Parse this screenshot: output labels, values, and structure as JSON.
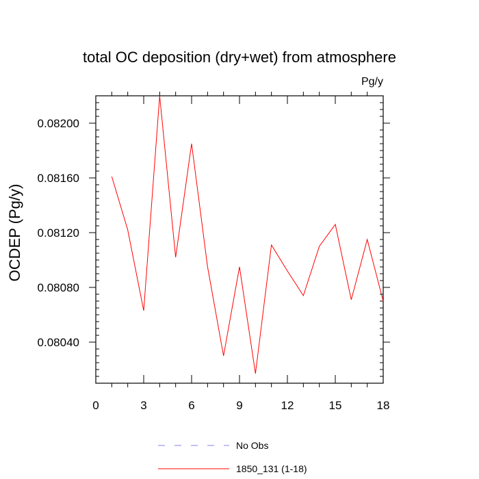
{
  "chart_data": {
    "type": "line",
    "title": "total OC deposition (dry+wet) from atmosphere",
    "units_label": "Pg/y",
    "ylabel": "OCDEP  (Pg/y)",
    "xlabel": "",
    "xlim": [
      0,
      18
    ],
    "ylim": [
      0.0801,
      0.0822
    ],
    "x_ticks": [
      0,
      3,
      6,
      9,
      12,
      15,
      18
    ],
    "x_tick_labels": [
      "0",
      "3",
      "6",
      "9",
      "12",
      "15",
      "18"
    ],
    "y_ticks": [
      0.0804,
      0.0808,
      0.0812,
      0.0816,
      0.082
    ],
    "y_tick_labels": [
      "0.08040",
      "0.08080",
      "0.08120",
      "0.08160",
      "0.08200"
    ],
    "grid": false,
    "legend_position": "bottom-center",
    "series": [
      {
        "name": "1850_131 (1-18)",
        "color": "#ff0000",
        "dash": "solid",
        "x": [
          1,
          2,
          3,
          4,
          5,
          6,
          7,
          8,
          9,
          10,
          11,
          12,
          13,
          14,
          15,
          16,
          17,
          18
        ],
        "values": [
          0.08161,
          0.08122,
          0.08063,
          0.0822,
          0.08102,
          0.08185,
          0.08095,
          0.0803,
          0.08095,
          0.08017,
          0.08111,
          0.08092,
          0.08074,
          0.0811,
          0.08126,
          0.08071,
          0.08115,
          0.0807
        ]
      }
    ],
    "legend": [
      {
        "label": "No Obs",
        "color": "#8080ff",
        "dash": "dashed"
      },
      {
        "label": "1850_131 (1-18)",
        "color": "#ff0000",
        "dash": "solid"
      }
    ]
  }
}
